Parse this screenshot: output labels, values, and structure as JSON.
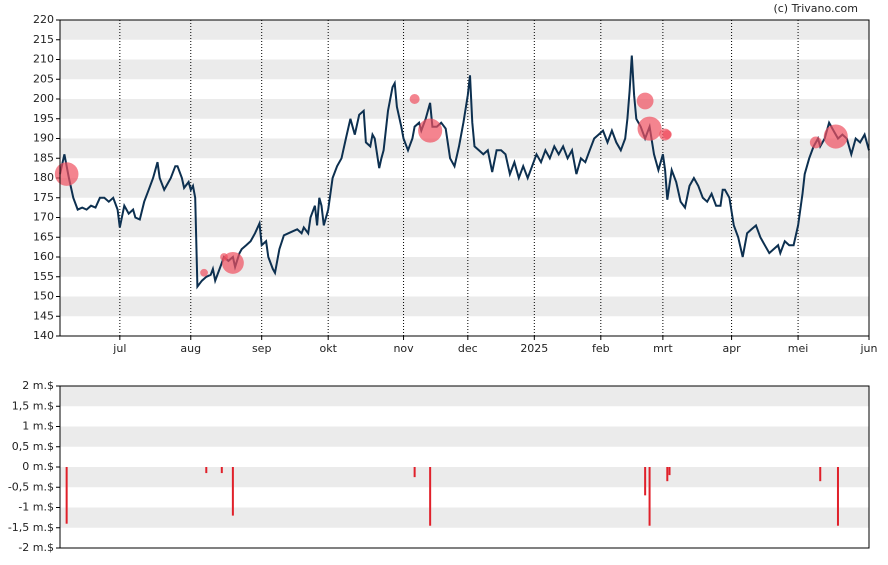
{
  "credit": "(c) Trivano.com",
  "chart_data": [
    {
      "type": "line",
      "color": "#0d3050",
      "x": [
        0,
        2,
        4,
        6,
        8,
        10,
        12,
        14,
        16,
        18,
        20,
        22,
        24,
        26,
        27,
        29,
        31,
        33,
        34,
        36,
        38,
        40,
        42,
        44,
        45,
        47,
        48,
        50,
        52,
        53,
        55,
        56,
        58,
        59,
        60,
        61,
        62,
        64,
        66,
        68,
        69,
        70,
        72,
        74,
        76,
        78,
        79,
        81,
        82,
        84,
        86,
        88,
        90,
        91,
        93,
        94,
        96,
        97,
        99,
        101,
        103,
        105,
        107,
        109,
        110,
        112,
        113,
        115,
        116,
        117,
        118,
        119,
        121,
        123,
        125,
        127,
        129,
        131,
        133,
        135,
        137,
        138,
        140,
        141,
        142,
        144,
        145,
        146,
        147,
        148,
        150,
        151,
        152,
        154,
        155,
        157,
        159,
        160,
        162,
        163,
        165,
        167,
        168,
        170,
        172,
        174,
        176,
        178,
        180,
        182,
        184,
        185,
        186,
        187,
        189,
        191,
        193,
        195,
        197,
        199,
        201,
        203,
        205,
        207,
        209,
        211,
        213,
        215,
        217,
        219,
        221,
        223,
        225,
        227,
        229,
        231,
        233,
        235,
        237,
        239,
        241,
        243,
        245,
        247,
        249,
        251,
        253,
        255,
        256,
        257,
        258,
        259,
        260,
        262,
        264,
        266,
        268,
        270,
        272,
        273,
        274,
        276,
        278,
        280,
        282,
        284,
        286,
        288,
        290,
        292,
        294,
        296,
        298,
        299,
        300,
        302,
        304,
        306,
        308,
        310,
        312,
        314,
        316,
        318,
        320,
        322,
        324,
        325,
        327,
        329,
        331,
        333,
        335,
        336,
        338,
        340,
        342,
        343,
        345,
        347,
        349,
        351,
        353,
        355,
        357,
        359,
        361,
        363,
        365
      ],
      "values": [
        181,
        186,
        180,
        175,
        172,
        172.5,
        172,
        173,
        172.5,
        175,
        175,
        174,
        175,
        172,
        167.5,
        173,
        171,
        172,
        170,
        169.5,
        174,
        177,
        180,
        184,
        180,
        177,
        178,
        180,
        183,
        183,
        180,
        177.5,
        179,
        177,
        178,
        175,
        152.5,
        154,
        155,
        155.5,
        157,
        154,
        157,
        160,
        159,
        160,
        157.5,
        161,
        162,
        163,
        164,
        166,
        168.5,
        163,
        164,
        160,
        157,
        156,
        162,
        165.5,
        166,
        166.5,
        167,
        166,
        167.5,
        166,
        170,
        173,
        168,
        175,
        173,
        168,
        172,
        180,
        183,
        185,
        190,
        195,
        191,
        196,
        197,
        189,
        188,
        191,
        190,
        182.5,
        185,
        187,
        192,
        197,
        203,
        204,
        198,
        193,
        190,
        187,
        190,
        193,
        194,
        192,
        195,
        199,
        193,
        193,
        194,
        192.5,
        185,
        183,
        188,
        194,
        201,
        206,
        194,
        188,
        187,
        186,
        187,
        181.5,
        187,
        187,
        186,
        181,
        184,
        180,
        183,
        180,
        183,
        186,
        184,
        187,
        185,
        188,
        186,
        188,
        185,
        187,
        181,
        185,
        184,
        187,
        190,
        191,
        192,
        189,
        192,
        189,
        187,
        190,
        195,
        202,
        211,
        201,
        195,
        193,
        190,
        193,
        186,
        182,
        186,
        182,
        174.5,
        182,
        179,
        174,
        172.5,
        178,
        180,
        178,
        175,
        174,
        176,
        173,
        173,
        177,
        177,
        175,
        168,
        165,
        160,
        166,
        167,
        168,
        165,
        163,
        161,
        162,
        163,
        161,
        164,
        163,
        163,
        168,
        176,
        181,
        185,
        188,
        190,
        188,
        190,
        194,
        192,
        190,
        191,
        190,
        186,
        190,
        189,
        191,
        187
      ],
      "bubbles": {
        "color": "#f05060",
        "x": [
          3,
          65,
          74,
          78,
          160,
          167,
          264,
          266,
          273,
          274,
          341,
          350
        ],
        "values": [
          181,
          156,
          160,
          158.5,
          200,
          192,
          199.5,
          192.5,
          191,
          191,
          189,
          190.5
        ],
        "sizes": [
          1.4,
          0.15,
          0.15,
          1.2,
          0.25,
          1.45,
          0.7,
          1.45,
          0.35,
          0.2,
          0.35,
          1.45
        ]
      },
      "xlim": [
        0,
        365
      ],
      "xticks": [
        {
          "value": 27,
          "label": "jul"
        },
        {
          "value": 59,
          "label": "aug"
        },
        {
          "value": 91,
          "label": "sep"
        },
        {
          "value": 121,
          "label": "okt"
        },
        {
          "value": 155,
          "label": "nov"
        },
        {
          "value": 184,
          "label": "dec"
        },
        {
          "value": 214,
          "label": "2025"
        },
        {
          "value": 244,
          "label": "feb"
        },
        {
          "value": 272,
          "label": "mrt"
        },
        {
          "value": 303,
          "label": "apr"
        },
        {
          "value": 333,
          "label": "mei"
        },
        {
          "value": 365,
          "label": "jun"
        }
      ],
      "ylim": [
        140,
        220
      ],
      "yticks": [
        140,
        145,
        150,
        155,
        160,
        165,
        170,
        175,
        180,
        185,
        190,
        195,
        200,
        205,
        210,
        215,
        220
      ],
      "grid": true
    },
    {
      "type": "bar",
      "color": "#e0202a",
      "x": [
        3,
        66,
        73,
        78,
        160,
        167,
        264,
        266,
        274,
        275,
        343,
        351
      ],
      "values": [
        -1.4,
        -0.15,
        -0.15,
        -1.2,
        -0.25,
        -1.45,
        -0.7,
        -1.45,
        -0.35,
        -0.2,
        -0.35,
        -1.45
      ],
      "xlim": [
        0,
        365
      ],
      "ylim": [
        -2,
        2
      ],
      "yticks": [
        {
          "value": -2,
          "label": "-2 m.$"
        },
        {
          "value": -1.5,
          "label": "-1,5 m.$"
        },
        {
          "value": -1,
          "label": "-1 m.$"
        },
        {
          "value": -0.5,
          "label": "-0,5 m.$"
        },
        {
          "value": 0,
          "label": "0 m.$"
        },
        {
          "value": 0.5,
          "label": "0,5 m.$"
        },
        {
          "value": 1,
          "label": "1 m.$"
        },
        {
          "value": 1.5,
          "label": "1,5 m.$"
        },
        {
          "value": 2,
          "label": "2 m.$"
        }
      ],
      "grid": true
    }
  ]
}
